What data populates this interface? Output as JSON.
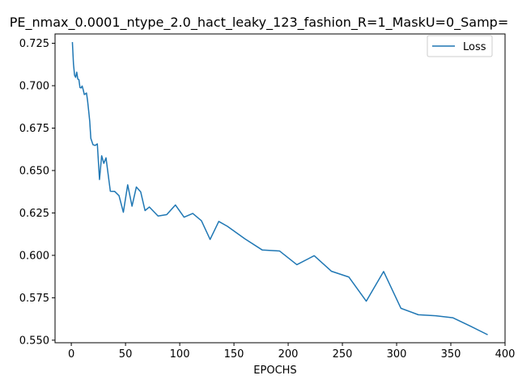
{
  "chart_data": {
    "type": "line",
    "title": "PE_nmax_0.0001_ntype_2.0_hact_leaky_123_fashion_R=1_MaskU=0_Samp=",
    "xlabel": "EPOCHS",
    "ylabel": "",
    "xlim": [
      -15,
      400
    ],
    "ylim": [
      0.5485,
      0.7305
    ],
    "xticks": [
      0,
      50,
      100,
      150,
      200,
      250,
      300,
      350,
      400
    ],
    "yticks": [
      0.55,
      0.575,
      0.6,
      0.625,
      0.65,
      0.675,
      0.7,
      0.725
    ],
    "ytick_labels": [
      "0.550",
      "0.575",
      "0.600",
      "0.625",
      "0.650",
      "0.675",
      "0.700",
      "0.725"
    ],
    "xtick_labels": [
      "0",
      "50",
      "100",
      "150",
      "200",
      "250",
      "300",
      "350",
      "400"
    ],
    "grid": false,
    "legend_placement": "top-right",
    "series": [
      {
        "name": "Loss",
        "color": "#1f77b4",
        "x": [
          1,
          2,
          3,
          4,
          5,
          6,
          7,
          8,
          9,
          10,
          11,
          12,
          13,
          14,
          15,
          16,
          17,
          18,
          20,
          22,
          24,
          26,
          28,
          30,
          32,
          36,
          40,
          44,
          48,
          52,
          56,
          60,
          64,
          68,
          72,
          80,
          88,
          96,
          104,
          112,
          120,
          128,
          136,
          144,
          160,
          176,
          192,
          208,
          224,
          240,
          256,
          272,
          288,
          304,
          320,
          336,
          352,
          368,
          384
        ],
        "y": [
          0.7257,
          0.7128,
          0.7062,
          0.7049,
          0.708,
          0.7039,
          0.7036,
          0.6989,
          0.6987,
          0.6998,
          0.6976,
          0.6948,
          0.6952,
          0.6957,
          0.6912,
          0.6853,
          0.679,
          0.669,
          0.6652,
          0.6648,
          0.6657,
          0.6447,
          0.6587,
          0.6542,
          0.6575,
          0.6378,
          0.6377,
          0.6352,
          0.6254,
          0.6416,
          0.629,
          0.6403,
          0.6374,
          0.6264,
          0.6285,
          0.6232,
          0.624,
          0.6297,
          0.6225,
          0.6247,
          0.6204,
          0.6094,
          0.62,
          0.6171,
          0.6098,
          0.6032,
          0.6026,
          0.5945,
          0.5998,
          0.5906,
          0.5872,
          0.573,
          0.5905,
          0.5688,
          0.565,
          0.5644,
          0.5632,
          0.5583,
          0.5532
        ]
      }
    ]
  }
}
